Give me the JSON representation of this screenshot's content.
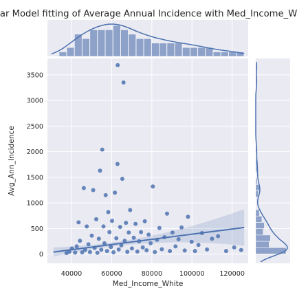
{
  "chart_data": {
    "type": "scatter",
    "title": "Linear Model fitting of Average Annual Incidence with Med_Income_White",
    "xlabel": "Med_Income_White",
    "ylabel": "Avg_Ann_Incidence",
    "xlim": [
      28000,
      128000
    ],
    "ylim": [
      -180,
      3820
    ],
    "x_ticks": [
      40000,
      60000,
      80000,
      100000,
      120000
    ],
    "y_ticks": [
      0,
      500,
      1000,
      1500,
      2000,
      2500,
      3000,
      3500
    ],
    "grid": true,
    "colors": {
      "series": "#4c72b0",
      "background": "#eaeaf2",
      "grid": "#ffffff",
      "hist_bar": "#8da1c9"
    },
    "series": [
      {
        "points": [
          [
            37500,
            20
          ],
          [
            38900,
            45
          ],
          [
            40200,
            110
          ],
          [
            41800,
            30
          ],
          [
            42600,
            150
          ],
          [
            43500,
            620
          ],
          [
            44200,
            260
          ],
          [
            45300,
            35
          ],
          [
            46100,
            1290
          ],
          [
            46800,
            80
          ],
          [
            47600,
            540
          ],
          [
            48400,
            190
          ],
          [
            49200,
            40
          ],
          [
            50100,
            360
          ],
          [
            50800,
            1250
          ],
          [
            51500,
            120
          ],
          [
            52300,
            680
          ],
          [
            52900,
            25
          ],
          [
            53600,
            300
          ],
          [
            54200,
            1630
          ],
          [
            54800,
            85
          ],
          [
            55300,
            2040
          ],
          [
            55900,
            540
          ],
          [
            56400,
            210
          ],
          [
            57000,
            1150
          ],
          [
            57700,
            60
          ],
          [
            58300,
            820
          ],
          [
            58900,
            430
          ],
          [
            59600,
            140
          ],
          [
            60200,
            650
          ],
          [
            60900,
            35
          ],
          [
            61600,
            1200
          ],
          [
            62300,
            310
          ],
          [
            62900,
            1760
          ],
          [
            63500,
            90
          ],
          [
            63000,
            3690
          ],
          [
            64200,
            530
          ],
          [
            64800,
            170
          ],
          [
            65300,
            1470
          ],
          [
            65900,
            3350
          ],
          [
            66500,
            260
          ],
          [
            67100,
            610
          ],
          [
            67800,
            45
          ],
          [
            68500,
            420
          ],
          [
            69200,
            860
          ],
          [
            70100,
            110
          ],
          [
            71000,
            320
          ],
          [
            71900,
            590
          ],
          [
            72800,
            50
          ],
          [
            73700,
            250
          ],
          [
            74600,
            430
          ],
          [
            75500,
            130
          ],
          [
            76500,
            640
          ],
          [
            77400,
            75
          ],
          [
            78400,
            380
          ],
          [
            79400,
            210
          ],
          [
            80500,
            1320
          ],
          [
            81500,
            40
          ],
          [
            82600,
            280
          ],
          [
            83800,
            510
          ],
          [
            85000,
            95
          ],
          [
            86300,
            330
          ],
          [
            87600,
            790
          ],
          [
            89000,
            60
          ],
          [
            90300,
            420
          ],
          [
            91800,
            150
          ],
          [
            93300,
            290
          ],
          [
            94800,
            520
          ],
          [
            96400,
            70
          ],
          [
            98000,
            730
          ],
          [
            99800,
            240
          ],
          [
            101500,
            60
          ],
          [
            103200,
            180
          ],
          [
            105000,
            410
          ],
          [
            107500,
            90
          ],
          [
            110000,
            300
          ],
          [
            113000,
            350
          ],
          [
            117000,
            60
          ],
          [
            121000,
            130
          ],
          [
            124500,
            80
          ]
        ]
      }
    ],
    "regression": {
      "start": [
        31000,
        40
      ],
      "end": [
        126000,
        520
      ]
    }
  }
}
